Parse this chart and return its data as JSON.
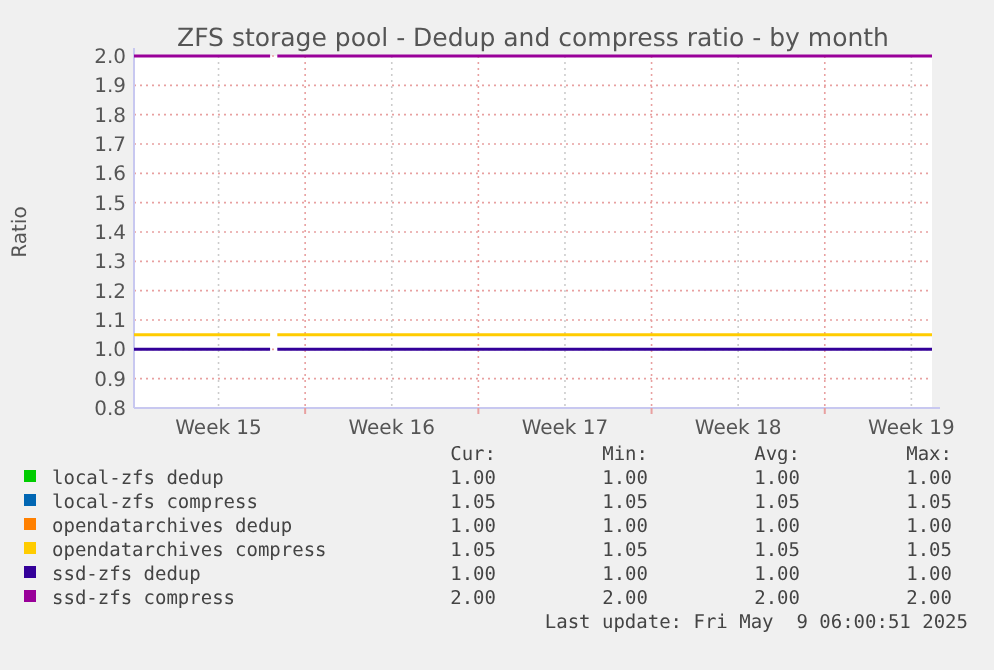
{
  "chart_data": {
    "type": "line",
    "title": "ZFS storage pool - Dedup and compress ratio - by month",
    "ylabel": "Ratio",
    "xlim": [
      "2025-04-07T02:00",
      "2025-05-09T08:00"
    ],
    "xticks": [
      {
        "value": "2025-04-10T12:00",
        "label": "Week 15"
      },
      {
        "value": "2025-04-14",
        "label": null
      },
      {
        "value": "2025-04-17T12:00",
        "label": "Week 16"
      },
      {
        "value": "2025-04-21",
        "label": null
      },
      {
        "value": "2025-04-24T12:00",
        "label": "Week 17"
      },
      {
        "value": "2025-04-28",
        "label": null
      },
      {
        "value": "2025-05-01T12:00",
        "label": "Week 18"
      },
      {
        "value": "2025-05-05",
        "label": null
      },
      {
        "value": "2025-05-08T12:00",
        "label": "Week 19"
      }
    ],
    "ylim": [
      0.8,
      2.0
    ],
    "yticks": [
      {
        "value": 0.8,
        "label": "0.8"
      },
      {
        "value": 0.9,
        "label": "0.9"
      },
      {
        "value": 1.0,
        "label": "1.0"
      },
      {
        "value": 1.1,
        "label": "1.1"
      },
      {
        "value": 1.2,
        "label": "1.2"
      },
      {
        "value": 1.3,
        "label": "1.3"
      },
      {
        "value": 1.4,
        "label": "1.4"
      },
      {
        "value": 1.5,
        "label": "1.5"
      },
      {
        "value": 1.6,
        "label": "1.6"
      },
      {
        "value": 1.7,
        "label": "1.7"
      },
      {
        "value": 1.8,
        "label": "1.8"
      },
      {
        "value": 1.9,
        "label": "1.9"
      },
      {
        "value": 2.0,
        "label": "2.0"
      }
    ],
    "grid": true,
    "legend": "bottom",
    "marker": "none",
    "line_style": "solid",
    "x": [
      "2025-04-07T02:00",
      "2025-04-12T14:00",
      "2025-04-12T16:00",
      "2025-04-12T21:00",
      "2025-05-09T08:00"
    ],
    "series": [
      {
        "name": "local-zfs dedup",
        "color": "#00cc00",
        "values": [
          null,
          null,
          null,
          null,
          null
        ]
      },
      {
        "name": "local-zfs compress",
        "color": "#0066b3",
        "values": [
          null,
          null,
          null,
          null,
          null
        ]
      },
      {
        "name": "opendatarchives dedup",
        "color": "#ff8000",
        "values": [
          null,
          null,
          null,
          null,
          null
        ]
      },
      {
        "name": "opendatarchives compress",
        "color": "#ffcc00",
        "values": [
          1.05,
          1.05,
          null,
          1.05,
          1.05
        ]
      },
      {
        "name": "ssd-zfs dedup",
        "color": "#330099",
        "values": [
          1.0,
          1.0,
          null,
          1.0,
          1.0
        ]
      },
      {
        "name": "ssd-zfs compress",
        "color": "#990099",
        "values": [
          2.0,
          2.0,
          null,
          2.0,
          2.0
        ]
      }
    ],
    "annotations": [
      "Cur:",
      "Min:",
      "Avg:",
      "Max:",
      "1.00 1.00 1.00 1.00",
      "1.05 1.05 1.05 1.05",
      "1.00 1.00 1.00 1.00",
      "1.05 1.05 1.05 1.05",
      "1.00 1.00 1.00 1.00",
      "2.00 2.00 2.00 2.00",
      "Last update: Fri May  9 06:00:51 2025"
    ]
  }
}
